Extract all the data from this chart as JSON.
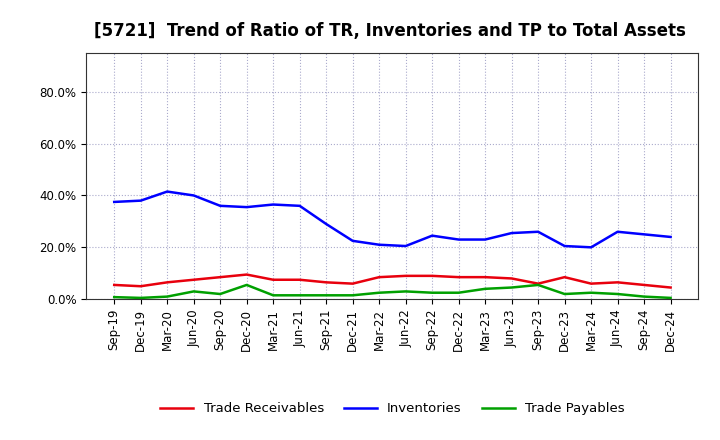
{
  "title": "[5721]  Trend of Ratio of TR, Inventories and TP to Total Assets",
  "x_labels": [
    "Sep-19",
    "Dec-19",
    "Mar-20",
    "Jun-20",
    "Sep-20",
    "Dec-20",
    "Mar-21",
    "Jun-21",
    "Sep-21",
    "Dec-21",
    "Mar-22",
    "Jun-22",
    "Sep-22",
    "Dec-22",
    "Mar-23",
    "Jun-23",
    "Sep-23",
    "Dec-23",
    "Mar-24",
    "Jun-24",
    "Sep-24",
    "Dec-24"
  ],
  "trade_receivables": [
    0.055,
    0.05,
    0.065,
    0.075,
    0.085,
    0.095,
    0.075,
    0.075,
    0.065,
    0.06,
    0.085,
    0.09,
    0.09,
    0.085,
    0.085,
    0.08,
    0.06,
    0.085,
    0.06,
    0.065,
    0.055,
    0.045
  ],
  "inventories": [
    0.375,
    0.38,
    0.415,
    0.4,
    0.36,
    0.355,
    0.365,
    0.36,
    0.29,
    0.225,
    0.21,
    0.205,
    0.245,
    0.23,
    0.23,
    0.255,
    0.26,
    0.205,
    0.2,
    0.26,
    0.25,
    0.24
  ],
  "trade_payables": [
    0.008,
    0.005,
    0.01,
    0.03,
    0.02,
    0.055,
    0.015,
    0.015,
    0.015,
    0.015,
    0.025,
    0.03,
    0.025,
    0.025,
    0.04,
    0.045,
    0.055,
    0.02,
    0.025,
    0.02,
    0.01,
    0.005
  ],
  "line_colors": {
    "trade_receivables": "#e8000d",
    "inventories": "#0000ff",
    "trade_payables": "#00a000"
  },
  "line_width": 1.8,
  "ylim": [
    0.0,
    0.95
  ],
  "yticks": [
    0.0,
    0.2,
    0.4,
    0.6,
    0.8
  ],
  "legend_labels": [
    "Trade Receivables",
    "Inventories",
    "Trade Payables"
  ],
  "bg_color": "#ffffff",
  "plot_bg_color": "#ffffff",
  "grid_color": "#aaaacc",
  "title_fontsize": 12,
  "tick_fontsize": 8.5,
  "legend_fontsize": 9.5
}
